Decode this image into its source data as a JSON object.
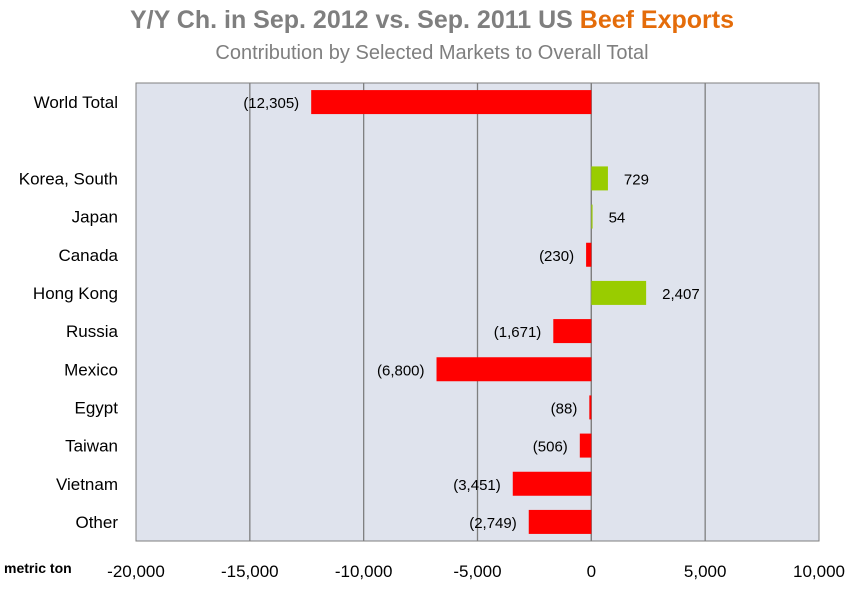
{
  "title": {
    "prefix": "Y/Y Ch.  in Sep. 2012 vs. Sep. 2011 US ",
    "accent": "Beef Exports"
  },
  "subtitle": "Contribution  by Selected Markets  to Overall Total",
  "colors": {
    "negative": "#ff0000",
    "positive": "#99cc00",
    "plot_bg": "#dfe3ed",
    "grid": "#7f7f7f"
  },
  "chart_data": {
    "type": "bar",
    "orientation": "horizontal",
    "categories": [
      "World Total",
      "",
      "Korea, South",
      "Japan",
      "Canada",
      "Hong Kong",
      "Russia",
      "Mexico",
      "Egypt",
      "Taiwan",
      "Vietnam",
      "Other"
    ],
    "values": [
      -12305,
      null,
      729,
      54,
      -230,
      2407,
      -1671,
      -6800,
      -88,
      -506,
      -3451,
      -2749
    ],
    "labels": [
      "(12,305)",
      "",
      "729",
      "54",
      "(230)",
      "2,407",
      "(1,671)",
      "(6,800)",
      "(88)",
      "(506)",
      "(3,451)",
      "(2,749)"
    ],
    "xlim": [
      -20000,
      10000
    ],
    "xticks": [
      -20000,
      -15000,
      -10000,
      -5000,
      0,
      5000,
      10000
    ],
    "xtick_labels": [
      "-20,000",
      "-15,000",
      "-10,000",
      "-5,000",
      "0",
      "5,000",
      "10,000"
    ],
    "xlabel": "metric ton",
    "grid": true
  }
}
